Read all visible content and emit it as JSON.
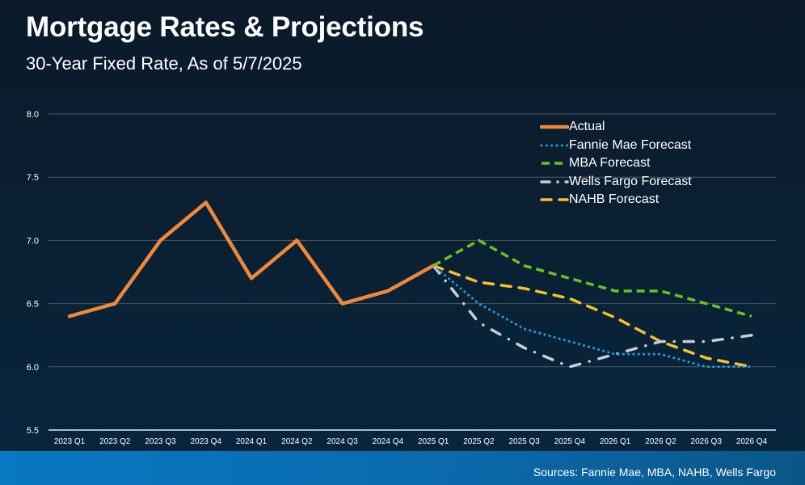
{
  "header": {
    "title": "Mortgage Rates & Projections",
    "subtitle": "30-Year Fixed Rate, As of 5/7/2025"
  },
  "footer": {
    "sources": "Sources: Fannie Mae, MBA, NAHB, Wells Fargo"
  },
  "chart_data": {
    "type": "line",
    "title": "Mortgage Rates & Projections",
    "subtitle": "30-Year Fixed Rate, As of 5/7/2025",
    "xlabel": "",
    "ylabel": "",
    "ylim": [
      5.5,
      8.0
    ],
    "yticks": [
      "5.5",
      "6.0",
      "6.5",
      "7.0",
      "7.5",
      "8.0"
    ],
    "grid": true,
    "legend_position": "top-right",
    "categories": [
      "2023 Q1",
      "2023 Q2",
      "2023 Q3",
      "2023 Q4",
      "2024 Q1",
      "2024 Q2",
      "2024 Q3",
      "2024 Q4",
      "2025 Q1",
      "2025 Q2",
      "2025 Q3",
      "2025 Q4",
      "2026 Q1",
      "2026 Q2",
      "2026 Q3",
      "2026 Q4"
    ],
    "series": [
      {
        "name": "Actual",
        "color": "#f0883a",
        "style": "solid",
        "values": [
          6.4,
          6.5,
          7.0,
          7.3,
          6.7,
          7.0,
          6.5,
          6.6,
          6.8,
          null,
          null,
          null,
          null,
          null,
          null,
          null
        ]
      },
      {
        "name": "Fannie Mae Forecast",
        "color": "#1aa3e8",
        "style": "dotted",
        "values": [
          null,
          null,
          null,
          null,
          null,
          null,
          null,
          null,
          6.8,
          6.5,
          6.3,
          6.2,
          6.1,
          6.1,
          6.0,
          6.0
        ]
      },
      {
        "name": "MBA Forecast",
        "color": "#6cc21c",
        "style": "dashed",
        "values": [
          null,
          null,
          null,
          null,
          null,
          null,
          null,
          null,
          6.8,
          7.0,
          6.8,
          6.7,
          6.6,
          6.6,
          6.5,
          6.4
        ]
      },
      {
        "name": "Wells Fargo Forecast",
        "color": "#c9cdd2",
        "style": "dashdot",
        "values": [
          null,
          null,
          null,
          null,
          null,
          null,
          null,
          null,
          6.8,
          6.35,
          6.15,
          6.0,
          6.1,
          6.2,
          6.2,
          6.25
        ]
      },
      {
        "name": "NAHB Forecast",
        "color": "#f5c02a",
        "style": "longdash",
        "values": [
          null,
          null,
          null,
          null,
          null,
          null,
          null,
          null,
          6.8,
          6.67,
          6.62,
          6.54,
          6.39,
          6.2,
          6.07,
          6.0
        ]
      }
    ]
  }
}
